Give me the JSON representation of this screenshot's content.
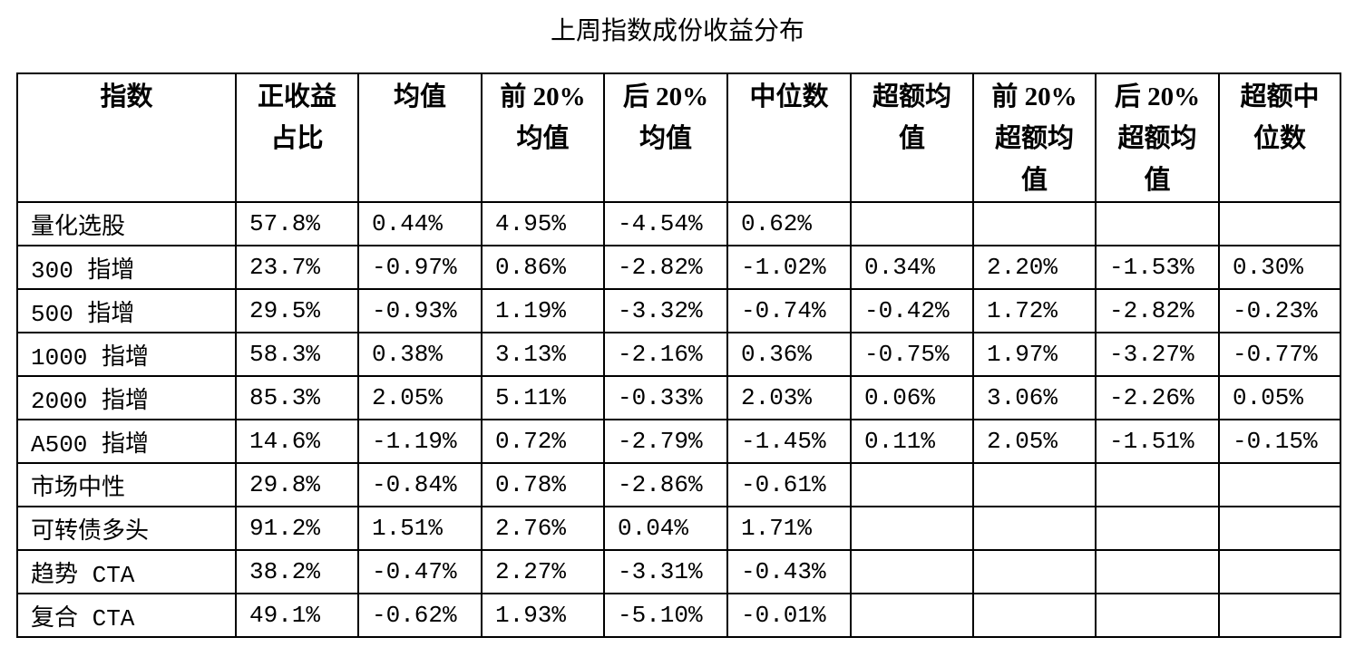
{
  "title": "上周指数成份收益分布",
  "table": {
    "header": [
      [
        "指数"
      ],
      [
        "正收益",
        "占比"
      ],
      [
        "均值"
      ],
      [
        "前 20%",
        "均值"
      ],
      [
        "后 20%",
        "均值"
      ],
      [
        "中位数"
      ],
      [
        "超额均",
        "值"
      ],
      [
        "前 20%",
        "超额均",
        "值"
      ],
      [
        "后 20%",
        "超额均",
        "值"
      ],
      [
        "超额中",
        "位数"
      ]
    ],
    "rows": [
      [
        "量化选股",
        "57.8%",
        "0.44%",
        "4.95%",
        "-4.54%",
        "0.62%",
        null,
        null,
        null,
        null
      ],
      [
        "300 指增",
        "23.7%",
        "-0.97%",
        "0.86%",
        "-2.82%",
        "-1.02%",
        "0.34%",
        "2.20%",
        "-1.53%",
        "0.30%"
      ],
      [
        "500 指增",
        "29.5%",
        "-0.93%",
        "1.19%",
        "-3.32%",
        "-0.74%",
        "-0.42%",
        "1.72%",
        "-2.82%",
        "-0.23%"
      ],
      [
        "1000 指增",
        "58.3%",
        "0.38%",
        "3.13%",
        "-2.16%",
        "0.36%",
        "-0.75%",
        "1.97%",
        "-3.27%",
        "-0.77%"
      ],
      [
        "2000 指增",
        "85.3%",
        "2.05%",
        "5.11%",
        "-0.33%",
        "2.03%",
        "0.06%",
        "3.06%",
        "-2.26%",
        "0.05%"
      ],
      [
        "A500 指增",
        "14.6%",
        "-1.19%",
        "0.72%",
        "-2.79%",
        "-1.45%",
        "0.11%",
        "2.05%",
        "-1.51%",
        "-0.15%"
      ],
      [
        "市场中性",
        "29.8%",
        "-0.84%",
        "0.78%",
        "-2.86%",
        "-0.61%",
        null,
        null,
        null,
        null
      ],
      [
        "可转债多头",
        "91.2%",
        "1.51%",
        "2.76%",
        "0.04%",
        "1.71%",
        null,
        null,
        null,
        null
      ],
      [
        "趋势 CTA",
        "38.2%",
        "-0.47%",
        "2.27%",
        "-3.31%",
        "-0.43%",
        null,
        null,
        null,
        null
      ],
      [
        "复合 CTA",
        "49.1%",
        "-0.62%",
        "1.93%",
        "-5.10%",
        "-0.01%",
        null,
        null,
        null,
        null
      ]
    ]
  }
}
